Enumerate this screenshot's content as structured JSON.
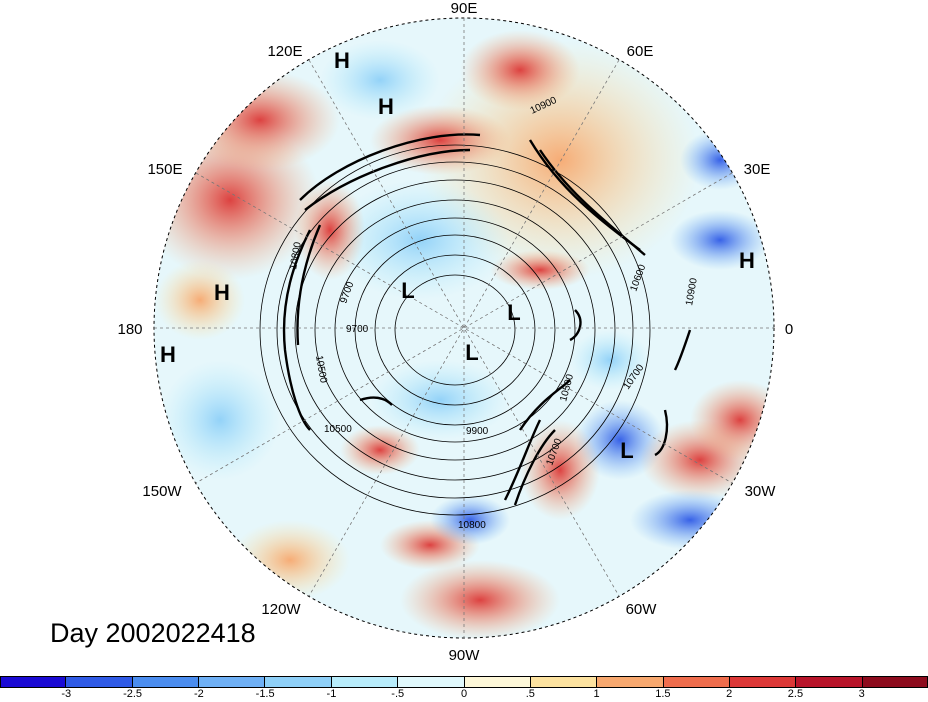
{
  "title": "Day 2002022418",
  "map": {
    "projection": "north polar stereographic",
    "longitude_labels": {
      "top": "90E",
      "upper_left": "120E",
      "upper_right": "60E",
      "left_upper": "150E",
      "right_upper": "30E",
      "left": "180",
      "right": "0",
      "left_lower": "150W",
      "right_lower": "30W",
      "lower_left": "120W",
      "lower_right": "60W",
      "bottom": "90W"
    },
    "pressure_centers": [
      {
        "label": "H"
      },
      {
        "label": "H"
      },
      {
        "label": "H"
      },
      {
        "label": "H"
      },
      {
        "label": "H"
      },
      {
        "label": "L"
      },
      {
        "label": "L"
      },
      {
        "label": "L"
      },
      {
        "label": "L"
      }
    ],
    "contour_labels": [
      "10900",
      "10600",
      "10900",
      "10700",
      "10500",
      "10700",
      "10800",
      "9900",
      "10500",
      "9700",
      "9700",
      "10800",
      "10500"
    ]
  },
  "colorbar": {
    "tick_labels": [
      "-3",
      "-2.5",
      "-2",
      "-1.5",
      "-1",
      "-.5",
      "0",
      ".5",
      "1",
      "1.5",
      "2",
      "2.5",
      "3"
    ],
    "colors": [
      "#1a0ad4",
      "#2f5ae6",
      "#4b8def",
      "#6fb0f5",
      "#8fd0f8",
      "#b8ecfb",
      "#e0f8fc",
      "#fdf7d8",
      "#fce2a0",
      "#f7a86f",
      "#ef6d4d",
      "#dc3837",
      "#b8142a",
      "#8d0b1d"
    ]
  }
}
